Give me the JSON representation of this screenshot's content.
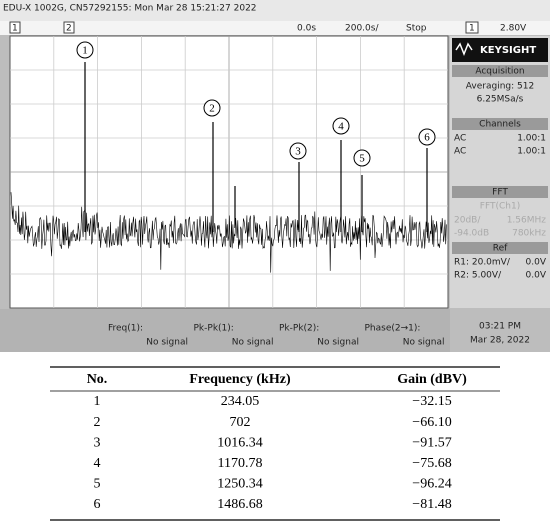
{
  "screen": {
    "header": "EDU-X 1002G, CN57292155: Mon Mar 28 15:21:27 2022",
    "channel_markers": [
      "1",
      "2"
    ],
    "time_ref": "0.0s",
    "timebase": "200.0s/",
    "run_state": "Stop",
    "trigger_channel": "1",
    "trigger_level": "2.80V",
    "peak_labels": [
      "1",
      "2",
      "3",
      "4",
      "5",
      "6"
    ],
    "side_panel": {
      "brand": "KEYSIGHT",
      "acquisition": {
        "title": "Acquisition",
        "mode": "Averaging: 512",
        "rate": "6.25MSa/s"
      },
      "channels": {
        "title": "Channels",
        "rows": [
          [
            "AC",
            "1.00:1"
          ],
          [
            "AC",
            "1.00:1"
          ]
        ]
      },
      "fft": {
        "title": "FFT",
        "source": "FFT(Ch1)",
        "rows": [
          [
            "20dB/",
            "1.56MHz"
          ],
          [
            "-94.0dB",
            "780kHz"
          ]
        ]
      },
      "ref": {
        "title": "Ref",
        "rows": [
          [
            "R1: 20.0mV/",
            "0.0V"
          ],
          [
            "R2: 5.00V/",
            "0.0V"
          ]
        ]
      }
    },
    "measurements": [
      {
        "label": "Freq(1):",
        "value": "No signal"
      },
      {
        "label": "Pk-Pk(1):",
        "value": "No signal"
      },
      {
        "label": "Pk-Pk(2):",
        "value": "No signal"
      },
      {
        "label": "Phase(2→1):",
        "value": "No signal"
      }
    ],
    "clock": {
      "time": "03:21 PM",
      "date": "Mar 28, 2022"
    }
  },
  "table": {
    "headers": [
      "No.",
      "Frequency (kHz)",
      "Gain (dBV)"
    ],
    "rows": [
      [
        "1",
        "234.05",
        "−32.15"
      ],
      [
        "2",
        "702",
        "−66.10"
      ],
      [
        "3",
        "1016.34",
        "−91.57"
      ],
      [
        "4",
        "1170.78",
        "−75.68"
      ],
      [
        "5",
        "1250.34",
        "−96.24"
      ],
      [
        "6",
        "1486.68",
        "−81.48"
      ]
    ]
  }
}
